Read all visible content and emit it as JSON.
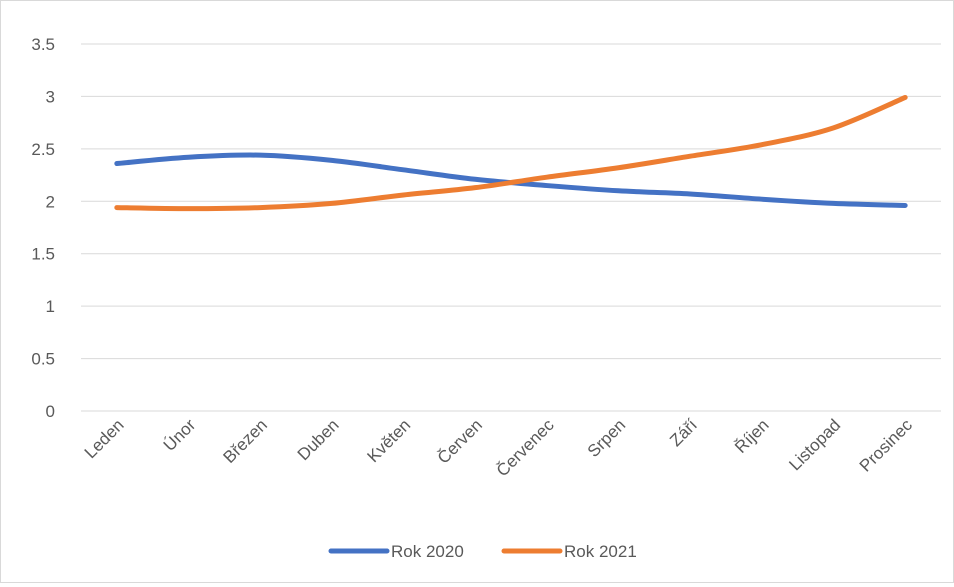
{
  "chart_data": {
    "type": "line",
    "categories": [
      "Leden",
      "Únor",
      "Březen",
      "Duben",
      "Květen",
      "Červen",
      "Červenec",
      "Srpen",
      "Září",
      "Říjen",
      "Listopad",
      "Prosinec"
    ],
    "series": [
      {
        "name": "Rok 2020",
        "color": "#4472c4",
        "values": [
          2.36,
          2.42,
          2.44,
          2.39,
          2.3,
          2.21,
          2.15,
          2.1,
          2.07,
          2.02,
          1.98,
          1.96
        ]
      },
      {
        "name": "Rok 2021",
        "color": "#ed7d31",
        "values": [
          1.94,
          1.93,
          1.94,
          1.98,
          2.06,
          2.13,
          2.23,
          2.32,
          2.43,
          2.54,
          2.7,
          2.99
        ]
      }
    ],
    "y_ticks": [
      "0",
      "0.5",
      "1",
      "1.5",
      "2",
      "2.5",
      "3",
      "3.5"
    ],
    "ylim": [
      0,
      3.5
    ],
    "grid": true,
    "legend_position": "bottom",
    "gridline_color": "#d9d9d9"
  }
}
